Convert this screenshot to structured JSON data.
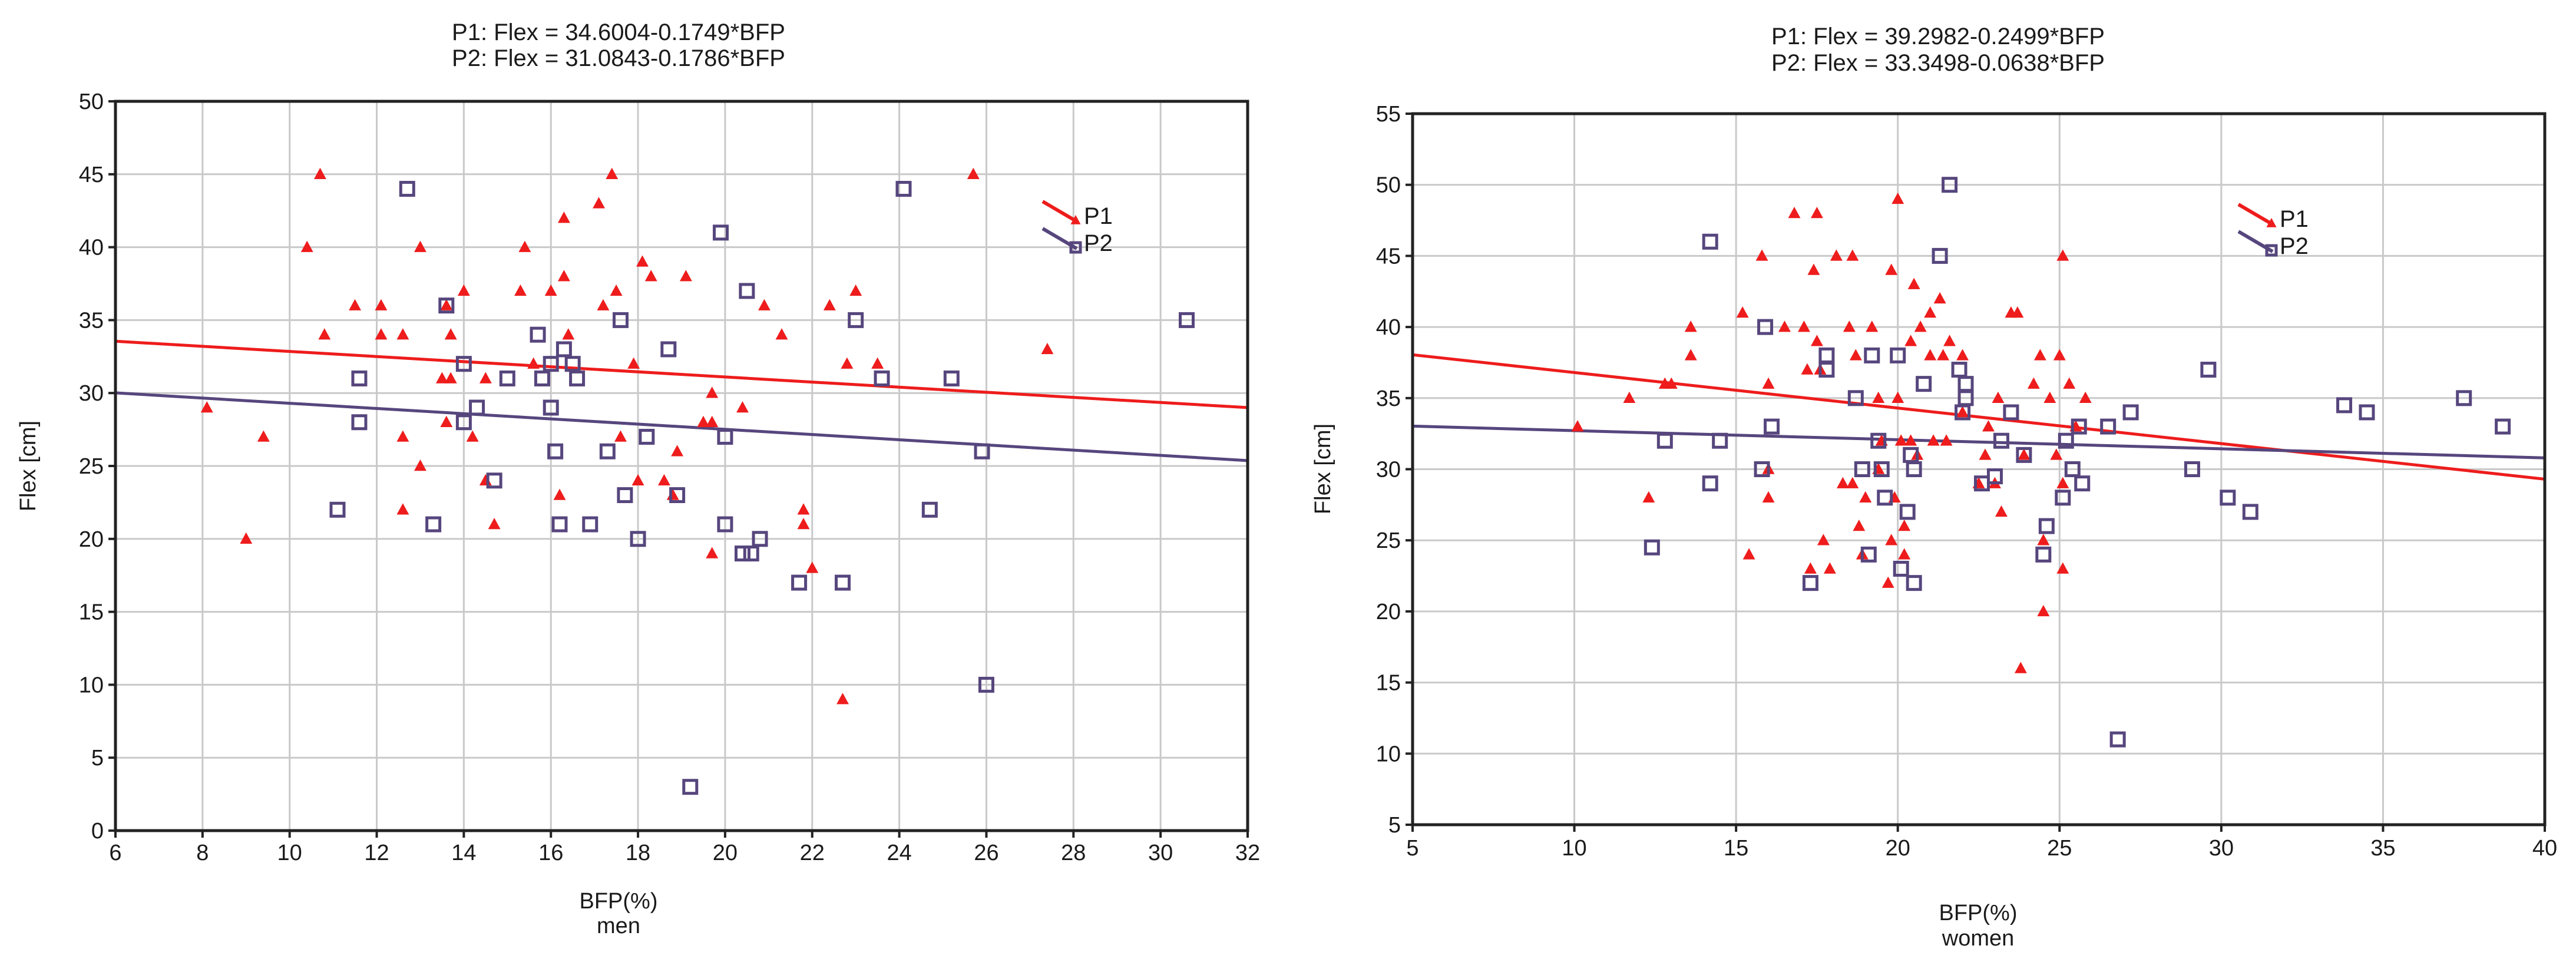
{
  "colors": {
    "p1": "#ee1c1c",
    "p2": "#56467d",
    "grid": "#c9c9c9",
    "frame": "#222222"
  },
  "chart_data": [
    {
      "id": "men",
      "type": "scatter",
      "title_lines": [
        "P1: Flex = 34.6004-0.1749*BFP",
        "P2: Flex = 31.0843-0.1786*BFP"
      ],
      "xlabel": "BFP(%)",
      "subtitle": "men",
      "ylabel": "Flex [cm]",
      "xlim": [
        6,
        32
      ],
      "ylim": [
        0,
        50
      ],
      "xticks": [
        6,
        8,
        10,
        12,
        14,
        16,
        18,
        20,
        22,
        24,
        26,
        28,
        30,
        32
      ],
      "yticks": [
        0,
        5,
        10,
        15,
        20,
        25,
        30,
        35,
        40,
        45,
        50
      ],
      "grid": true,
      "legend_position": "top-right",
      "series": [
        {
          "name": "P1",
          "marker": "triangle",
          "fit": {
            "intercept": 34.6004,
            "slope": -0.1749
          },
          "points": [
            [
              8.1,
              29
            ],
            [
              9.0,
              20
            ],
            [
              9.4,
              27
            ],
            [
              10.4,
              40
            ],
            [
              10.7,
              45
            ],
            [
              10.8,
              34
            ],
            [
              11.5,
              36
            ],
            [
              12.1,
              36
            ],
            [
              12.1,
              34
            ],
            [
              12.6,
              34
            ],
            [
              12.6,
              27
            ],
            [
              12.6,
              22
            ],
            [
              13.0,
              40
            ],
            [
              13.0,
              25
            ],
            [
              13.5,
              31
            ],
            [
              13.6,
              28
            ],
            [
              13.6,
              36
            ],
            [
              13.7,
              34
            ],
            [
              13.7,
              31
            ],
            [
              14.0,
              37
            ],
            [
              14.2,
              27
            ],
            [
              14.5,
              24
            ],
            [
              14.5,
              31
            ],
            [
              14.7,
              21
            ],
            [
              15.3,
              37
            ],
            [
              15.4,
              40
            ],
            [
              15.6,
              32
            ],
            [
              16.0,
              37
            ],
            [
              16.2,
              23
            ],
            [
              16.3,
              38
            ],
            [
              16.3,
              42
            ],
            [
              16.4,
              34
            ],
            [
              17.1,
              43
            ],
            [
              17.2,
              36
            ],
            [
              17.4,
              45
            ],
            [
              17.5,
              37
            ],
            [
              17.6,
              27
            ],
            [
              17.9,
              32
            ],
            [
              18.0,
              24
            ],
            [
              18.1,
              39
            ],
            [
              18.3,
              38
            ],
            [
              18.6,
              24
            ],
            [
              18.8,
              23
            ],
            [
              18.9,
              26
            ],
            [
              19.1,
              38
            ],
            [
              19.5,
              28
            ],
            [
              19.7,
              30
            ],
            [
              19.7,
              19
            ],
            [
              19.7,
              28
            ],
            [
              20.4,
              29
            ],
            [
              20.9,
              36
            ],
            [
              21.3,
              34
            ],
            [
              21.8,
              21
            ],
            [
              21.8,
              22
            ],
            [
              22.0,
              18
            ],
            [
              22.4,
              36
            ],
            [
              22.7,
              9
            ],
            [
              22.8,
              32
            ],
            [
              23.0,
              37
            ],
            [
              23.5,
              32
            ],
            [
              25.7,
              45
            ],
            [
              27.4,
              33
            ]
          ]
        },
        {
          "name": "P2",
          "marker": "square",
          "fit": {
            "intercept": 31.0843,
            "slope": -0.1786
          },
          "points": [
            [
              11.1,
              22
            ],
            [
              11.6,
              31
            ],
            [
              11.6,
              28
            ],
            [
              12.7,
              44
            ],
            [
              13.3,
              21
            ],
            [
              13.6,
              36
            ],
            [
              14.0,
              32
            ],
            [
              14.0,
              28
            ],
            [
              14.3,
              29
            ],
            [
              14.7,
              24
            ],
            [
              15.0,
              31
            ],
            [
              15.7,
              34
            ],
            [
              15.8,
              31
            ],
            [
              16.0,
              29
            ],
            [
              16.0,
              32
            ],
            [
              16.1,
              26
            ],
            [
              16.2,
              21
            ],
            [
              16.3,
              33
            ],
            [
              16.5,
              32
            ],
            [
              16.6,
              31
            ],
            [
              16.9,
              21
            ],
            [
              17.3,
              26
            ],
            [
              17.6,
              35
            ],
            [
              17.7,
              23
            ],
            [
              18.0,
              20
            ],
            [
              18.2,
              27
            ],
            [
              18.7,
              33
            ],
            [
              18.9,
              23
            ],
            [
              19.2,
              3
            ],
            [
              19.9,
              41
            ],
            [
              20.0,
              21
            ],
            [
              20.0,
              27
            ],
            [
              20.5,
              37
            ],
            [
              20.4,
              19
            ],
            [
              20.6,
              19
            ],
            [
              20.8,
              20
            ],
            [
              21.7,
              17
            ],
            [
              22.7,
              17
            ],
            [
              23.0,
              35
            ],
            [
              23.6,
              31
            ],
            [
              24.1,
              44
            ],
            [
              24.7,
              22
            ],
            [
              25.2,
              31
            ],
            [
              25.9,
              26
            ],
            [
              26.0,
              10
            ],
            [
              30.6,
              35
            ]
          ]
        }
      ]
    },
    {
      "id": "women",
      "type": "scatter",
      "title_lines": [
        "P1: Flex = 39.2982-0.2499*BFP",
        "P2: Flex = 33.3498-0.0638*BFP"
      ],
      "xlabel": "BFP(%)",
      "subtitle": "women",
      "ylabel": "Flex [cm]",
      "xlim": [
        5,
        40
      ],
      "ylim": [
        5,
        55
      ],
      "xticks": [
        5,
        10,
        15,
        20,
        25,
        30,
        35,
        40
      ],
      "yticks": [
        5,
        10,
        15,
        20,
        25,
        30,
        35,
        40,
        45,
        50,
        55
      ],
      "grid": true,
      "legend_position": "top-right",
      "series": [
        {
          "name": "P1",
          "marker": "triangle",
          "fit": {
            "intercept": 39.2982,
            "slope": -0.2499
          },
          "points": [
            [
              10.1,
              33
            ],
            [
              11.7,
              35
            ],
            [
              12.3,
              28
            ],
            [
              12.8,
              36
            ],
            [
              13.0,
              36
            ],
            [
              13.6,
              40
            ],
            [
              13.6,
              38
            ],
            [
              15.2,
              41
            ],
            [
              15.4,
              24
            ],
            [
              15.8,
              45
            ],
            [
              16.0,
              30
            ],
            [
              16.0,
              28
            ],
            [
              16.0,
              36
            ],
            [
              16.5,
              40
            ],
            [
              16.8,
              48
            ],
            [
              17.1,
              40
            ],
            [
              17.2,
              37
            ],
            [
              17.3,
              23
            ],
            [
              17.4,
              44
            ],
            [
              17.5,
              48
            ],
            [
              17.5,
              39
            ],
            [
              17.6,
              37
            ],
            [
              17.7,
              25
            ],
            [
              17.9,
              23
            ],
            [
              18.1,
              45
            ],
            [
              18.3,
              29
            ],
            [
              18.5,
              40
            ],
            [
              18.6,
              29
            ],
            [
              18.6,
              45
            ],
            [
              18.7,
              38
            ],
            [
              18.8,
              26
            ],
            [
              18.9,
              24
            ],
            [
              19.0,
              28
            ],
            [
              19.2,
              40
            ],
            [
              19.4,
              35
            ],
            [
              19.4,
              30
            ],
            [
              19.5,
              32
            ],
            [
              19.7,
              22
            ],
            [
              19.8,
              25
            ],
            [
              19.8,
              44
            ],
            [
              19.9,
              28
            ],
            [
              20.0,
              35
            ],
            [
              20.0,
              49
            ],
            [
              20.1,
              32
            ],
            [
              20.2,
              26
            ],
            [
              20.2,
              24
            ],
            [
              20.4,
              32
            ],
            [
              20.4,
              39
            ],
            [
              20.5,
              43
            ],
            [
              20.6,
              31
            ],
            [
              20.7,
              40
            ],
            [
              21.0,
              41
            ],
            [
              21.0,
              38
            ],
            [
              21.1,
              32
            ],
            [
              21.3,
              42
            ],
            [
              21.4,
              38
            ],
            [
              21.5,
              32
            ],
            [
              21.6,
              39
            ],
            [
              22.0,
              34
            ],
            [
              22.0,
              38
            ],
            [
              22.5,
              29
            ],
            [
              22.7,
              31
            ],
            [
              22.8,
              33
            ],
            [
              23.0,
              29
            ],
            [
              23.1,
              35
            ],
            [
              23.2,
              27
            ],
            [
              23.5,
              41
            ],
            [
              23.7,
              41
            ],
            [
              23.8,
              16
            ],
            [
              23.9,
              31
            ],
            [
              24.2,
              36
            ],
            [
              24.4,
              38
            ],
            [
              24.5,
              20
            ],
            [
              24.5,
              25
            ],
            [
              24.7,
              35
            ],
            [
              24.9,
              31
            ],
            [
              25.0,
              38
            ],
            [
              25.1,
              23
            ],
            [
              25.1,
              45
            ],
            [
              25.1,
              29
            ],
            [
              25.3,
              36
            ],
            [
              25.5,
              33
            ],
            [
              25.8,
              35
            ]
          ]
        },
        {
          "name": "P2",
          "marker": "square",
          "fit": {
            "intercept": 33.3498,
            "slope": -0.0638
          },
          "points": [
            [
              12.4,
              24.5
            ],
            [
              12.8,
              32
            ],
            [
              14.2,
              29
            ],
            [
              14.2,
              46
            ],
            [
              14.5,
              32
            ],
            [
              15.8,
              30
            ],
            [
              15.9,
              40
            ],
            [
              16.1,
              33
            ],
            [
              17.3,
              22
            ],
            [
              17.8,
              38
            ],
            [
              17.8,
              37
            ],
            [
              18.7,
              35
            ],
            [
              18.9,
              30
            ],
            [
              19.1,
              24
            ],
            [
              19.2,
              38
            ],
            [
              19.4,
              32
            ],
            [
              19.5,
              30
            ],
            [
              19.6,
              28
            ],
            [
              20.0,
              38
            ],
            [
              20.1,
              23
            ],
            [
              20.3,
              27
            ],
            [
              20.4,
              31
            ],
            [
              20.5,
              22
            ],
            [
              20.5,
              30
            ],
            [
              20.8,
              36
            ],
            [
              21.3,
              45
            ],
            [
              21.6,
              50
            ],
            [
              21.9,
              37
            ],
            [
              22.0,
              34
            ],
            [
              22.1,
              35
            ],
            [
              22.1,
              36
            ],
            [
              22.6,
              29
            ],
            [
              23.0,
              29.5
            ],
            [
              23.2,
              32
            ],
            [
              23.5,
              34
            ],
            [
              23.9,
              31
            ],
            [
              24.5,
              24
            ],
            [
              24.6,
              26
            ],
            [
              25.1,
              28
            ],
            [
              25.2,
              32
            ],
            [
              25.4,
              30
            ],
            [
              25.6,
              33
            ],
            [
              25.7,
              29
            ],
            [
              26.5,
              33
            ],
            [
              26.8,
              11
            ],
            [
              27.2,
              34
            ],
            [
              29.1,
              30
            ],
            [
              29.6,
              37
            ],
            [
              30.2,
              28
            ],
            [
              30.9,
              27
            ],
            [
              33.8,
              34.5
            ],
            [
              34.5,
              34
            ],
            [
              37.5,
              35
            ],
            [
              38.7,
              33
            ]
          ]
        }
      ]
    }
  ]
}
